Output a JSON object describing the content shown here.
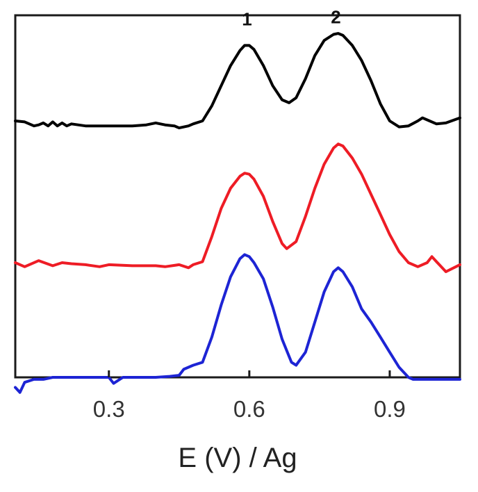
{
  "chart_data": {
    "type": "line",
    "title": "",
    "xlabel": "E (V) / Ag",
    "ylabel": "",
    "xlim": [
      0.1,
      1.05
    ],
    "ylim": [
      0,
      3.6
    ],
    "xticks": [
      0.3,
      0.6,
      0.9
    ],
    "x_tick_labels": [
      "0.3",
      "0.6",
      "0.9"
    ],
    "grid": false,
    "annotations": [
      {
        "text": "1",
        "x": 0.595,
        "y": 3.5
      },
      {
        "text": "2",
        "x": 0.785,
        "y": 3.52
      }
    ],
    "series": [
      {
        "color": "#000000",
        "x": [
          0.1,
          0.12,
          0.14,
          0.15,
          0.16,
          0.17,
          0.18,
          0.19,
          0.2,
          0.21,
          0.22,
          0.25,
          0.3,
          0.35,
          0.38,
          0.4,
          0.42,
          0.44,
          0.45,
          0.47,
          0.48,
          0.5,
          0.52,
          0.54,
          0.56,
          0.58,
          0.59,
          0.6,
          0.61,
          0.63,
          0.65,
          0.67,
          0.685,
          0.7,
          0.72,
          0.74,
          0.76,
          0.78,
          0.79,
          0.8,
          0.82,
          0.84,
          0.86,
          0.88,
          0.9,
          0.92,
          0.94,
          0.96,
          0.97,
          0.98,
          1.0,
          1.02,
          1.05
        ],
        "y": [
          2.55,
          2.54,
          2.5,
          2.51,
          2.53,
          2.5,
          2.54,
          2.5,
          2.53,
          2.5,
          2.52,
          2.5,
          2.5,
          2.5,
          2.51,
          2.53,
          2.51,
          2.5,
          2.48,
          2.5,
          2.52,
          2.55,
          2.7,
          2.9,
          3.1,
          3.25,
          3.3,
          3.3,
          3.26,
          3.1,
          2.9,
          2.76,
          2.73,
          2.78,
          2.97,
          3.2,
          3.35,
          3.41,
          3.42,
          3.4,
          3.3,
          3.15,
          2.95,
          2.72,
          2.55,
          2.49,
          2.5,
          2.55,
          2.58,
          2.56,
          2.52,
          2.53,
          2.58
        ]
      },
      {
        "color": "#ee1c25",
        "x": [
          0.1,
          0.12,
          0.15,
          0.18,
          0.2,
          0.22,
          0.25,
          0.28,
          0.3,
          0.35,
          0.4,
          0.42,
          0.45,
          0.47,
          0.48,
          0.5,
          0.52,
          0.54,
          0.56,
          0.58,
          0.59,
          0.6,
          0.61,
          0.63,
          0.65,
          0.67,
          0.68,
          0.7,
          0.72,
          0.74,
          0.76,
          0.78,
          0.79,
          0.8,
          0.82,
          0.84,
          0.86,
          0.88,
          0.9,
          0.92,
          0.94,
          0.96,
          0.98,
          0.99,
          1.0,
          1.02,
          1.05
        ],
        "y": [
          1.14,
          1.1,
          1.16,
          1.11,
          1.14,
          1.13,
          1.12,
          1.1,
          1.12,
          1.11,
          1.11,
          1.1,
          1.12,
          1.09,
          1.12,
          1.15,
          1.4,
          1.68,
          1.88,
          2.0,
          2.03,
          2.02,
          1.97,
          1.8,
          1.55,
          1.33,
          1.28,
          1.35,
          1.6,
          1.88,
          2.12,
          2.28,
          2.32,
          2.3,
          2.18,
          2.02,
          1.82,
          1.62,
          1.42,
          1.25,
          1.14,
          1.1,
          1.14,
          1.2,
          1.15,
          1.05,
          1.12
        ]
      },
      {
        "color": "#1d24d4",
        "x": [
          0.1,
          0.11,
          0.12,
          0.14,
          0.16,
          0.18,
          0.2,
          0.25,
          0.3,
          0.31,
          0.33,
          0.35,
          0.4,
          0.43,
          0.45,
          0.46,
          0.48,
          0.5,
          0.52,
          0.54,
          0.56,
          0.58,
          0.59,
          0.6,
          0.61,
          0.63,
          0.65,
          0.67,
          0.69,
          0.7,
          0.72,
          0.74,
          0.76,
          0.78,
          0.79,
          0.8,
          0.82,
          0.84,
          0.86,
          0.88,
          0.9,
          0.92,
          0.94,
          0.95,
          0.97,
          1.0,
          1.05
        ],
        "y": [
          -0.1,
          -0.15,
          -0.05,
          -0.02,
          -0.02,
          0.0,
          0.0,
          0.0,
          0.0,
          -0.06,
          0.0,
          0.0,
          0.0,
          0.01,
          0.02,
          0.08,
          0.12,
          0.15,
          0.4,
          0.72,
          1.0,
          1.18,
          1.22,
          1.2,
          1.14,
          0.98,
          0.7,
          0.38,
          0.15,
          0.12,
          0.25,
          0.55,
          0.85,
          1.05,
          1.09,
          1.05,
          0.9,
          0.68,
          0.55,
          0.4,
          0.25,
          0.1,
          0.0,
          -0.02,
          -0.02,
          -0.02,
          -0.02
        ]
      }
    ]
  }
}
